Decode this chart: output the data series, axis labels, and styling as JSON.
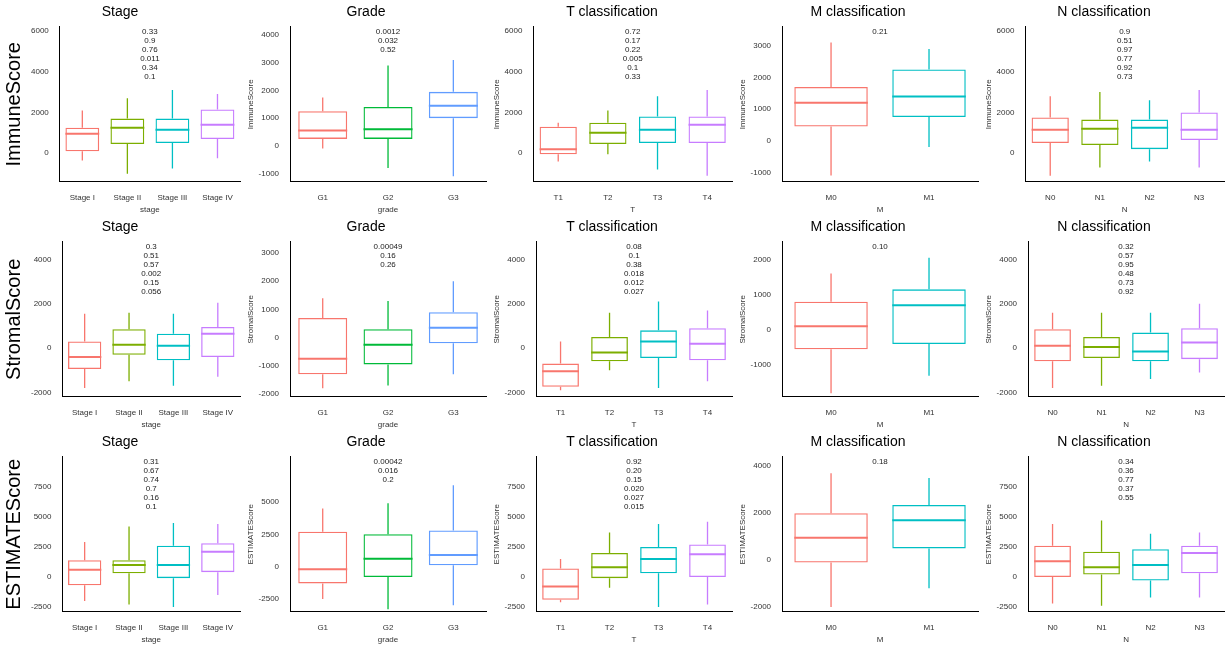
{
  "chart_data": [
    {
      "type": "box",
      "title": "Stage",
      "xlabel": "stage",
      "ylabel": "ImmuneScore",
      "categories": [
        "Stage I",
        "Stage II",
        "Stage III",
        "Stage IV"
      ],
      "colors": [
        "#f8766d",
        "#7cae00",
        "#00bfc4",
        "#c77cff"
      ],
      "boxes": [
        {
          "low": -350,
          "q1": 100,
          "median": 950,
          "q3": 1250,
          "high": 2100
        },
        {
          "low": -1000,
          "q1": 450,
          "median": 1250,
          "q3": 1700,
          "high": 2700
        },
        {
          "low": -750,
          "q1": 500,
          "median": 1150,
          "q3": 1700,
          "high": 3100
        },
        {
          "low": -250,
          "q1": 700,
          "median": 1400,
          "q3": 2150,
          "high": 2900
        }
      ],
      "ylim": [
        -1400,
        6200
      ],
      "yticks": [
        0,
        2000,
        4000,
        6000
      ],
      "annotations": [
        "0.33",
        "0.9",
        "0.76",
        "0.011",
        "0.34",
        "0.1"
      ]
    },
    {
      "type": "box",
      "title": "Grade",
      "xlabel": "grade",
      "ylabel": "ImmuneScore",
      "categories": [
        "G1",
        "G2",
        "G3"
      ],
      "colors": [
        "#f8766d",
        "#00ba38",
        "#619cff"
      ],
      "boxes": [
        {
          "low": -100,
          "q1": 250,
          "median": 550,
          "q3": 1250,
          "high": 1750
        },
        {
          "low": -800,
          "q1": 250,
          "median": 600,
          "q3": 1400,
          "high": 2900
        },
        {
          "low": -1100,
          "q1": 1000,
          "median": 1450,
          "q3": 1950,
          "high": 3100
        }
      ],
      "ylim": [
        -1300,
        4300
      ],
      "yticks": [
        -1000,
        0,
        1000,
        2000,
        3000,
        4000
      ],
      "annotations": [
        "0.0012",
        "0.032",
        "0.52"
      ]
    },
    {
      "type": "box",
      "title": "T classification",
      "xlabel": "T",
      "ylabel": "ImmuneScore",
      "categories": [
        "T1",
        "T2",
        "T3",
        "T4"
      ],
      "colors": [
        "#f8766d",
        "#7cae00",
        "#00bfc4",
        "#c77cff"
      ],
      "boxes": [
        {
          "low": -400,
          "q1": -50,
          "median": 200,
          "q3": 1300,
          "high": 1500
        },
        {
          "low": -50,
          "q1": 450,
          "median": 1000,
          "q3": 1500,
          "high": 2100
        },
        {
          "low": -800,
          "q1": 500,
          "median": 1150,
          "q3": 1800,
          "high": 2800
        },
        {
          "low": -1100,
          "q1": 500,
          "median": 1400,
          "q3": 1800,
          "high": 3100
        }
      ],
      "ylim": [
        -1400,
        6200
      ],
      "yticks": [
        0,
        2000,
        4000,
        6000
      ],
      "annotations": [
        "0.72",
        "0.17",
        "0.22",
        "0.005",
        "0.1",
        "0.33"
      ]
    },
    {
      "type": "box",
      "title": "M classification",
      "xlabel": "M",
      "ylabel": "ImmuneScore",
      "categories": [
        "M0",
        "M1"
      ],
      "colors": [
        "#f8766d",
        "#00bfc4"
      ],
      "boxes": [
        {
          "low": -1100,
          "q1": 450,
          "median": 1200,
          "q3": 1700,
          "high": 3100
        },
        {
          "low": -200,
          "q1": 750,
          "median": 1400,
          "q3": 2250,
          "high": 2900
        }
      ],
      "ylim": [
        -1300,
        3600
      ],
      "yticks": [
        -1000,
        0,
        1000,
        2000,
        3000
      ],
      "annotations": [
        "0.21"
      ]
    },
    {
      "type": "box",
      "title": "N classification",
      "xlabel": "N",
      "ylabel": "ImmuneScore",
      "categories": [
        "N0",
        "N1",
        "N2",
        "N3"
      ],
      "colors": [
        "#f8766d",
        "#7cae00",
        "#00bfc4",
        "#c77cff"
      ],
      "boxes": [
        {
          "low": -1100,
          "q1": 500,
          "median": 1150,
          "q3": 1750,
          "high": 2800
        },
        {
          "low": -700,
          "q1": 400,
          "median": 1200,
          "q3": 1650,
          "high": 3000
        },
        {
          "low": -400,
          "q1": 200,
          "median": 1250,
          "q3": 1650,
          "high": 2600
        },
        {
          "low": -700,
          "q1": 650,
          "median": 1150,
          "q3": 2000,
          "high": 3100
        }
      ],
      "ylim": [
        -1400,
        6200
      ],
      "yticks": [
        0,
        2000,
        4000,
        6000
      ],
      "annotations": [
        "0.9",
        "0.51",
        "0.97",
        "0.77",
        "0.92",
        "0.73"
      ]
    },
    {
      "type": "box",
      "title": "Stage",
      "xlabel": "stage",
      "ylabel": "StromalScore",
      "categories": [
        "Stage I",
        "Stage II",
        "Stage III",
        "Stage IV"
      ],
      "colors": [
        "#f8766d",
        "#7cae00",
        "#00bfc4",
        "#c77cff"
      ],
      "boxes": [
        {
          "low": -1800,
          "q1": -950,
          "median": -400,
          "q3": 300,
          "high": 1550
        },
        {
          "low": -1500,
          "q1": -300,
          "median": 150,
          "q3": 850,
          "high": 1600
        },
        {
          "low": -1700,
          "q1": -550,
          "median": 100,
          "q3": 650,
          "high": 1550
        },
        {
          "low": -1300,
          "q1": -400,
          "median": 650,
          "q3": 950,
          "high": 2050
        }
      ],
      "ylim": [
        -2200,
        4800
      ],
      "yticks": [
        -2000,
        0,
        2000,
        4000
      ],
      "annotations": [
        "0.3",
        "0.51",
        "0.57",
        "0.002",
        "0.15",
        "0.056"
      ]
    },
    {
      "type": "box",
      "title": "Grade",
      "xlabel": "grade",
      "ylabel": "StromalScore",
      "categories": [
        "G1",
        "G2",
        "G3"
      ],
      "colors": [
        "#f8766d",
        "#00ba38",
        "#619cff"
      ],
      "boxes": [
        {
          "low": -1800,
          "q1": -1300,
          "median": -750,
          "q3": 700,
          "high": 1400
        },
        {
          "low": -1700,
          "q1": -950,
          "median": -250,
          "q3": 300,
          "high": 1300
        },
        {
          "low": -1300,
          "q1": -200,
          "median": 350,
          "q3": 900,
          "high": 2000
        }
      ],
      "ylim": [
        -2100,
        3400
      ],
      "yticks": [
        -2000,
        -1000,
        0,
        1000,
        2000,
        3000
      ],
      "annotations": [
        "0.00049",
        "0.16",
        "0.26"
      ]
    },
    {
      "type": "box",
      "title": "T classification",
      "xlabel": "T",
      "ylabel": "StromalScore",
      "categories": [
        "T1",
        "T2",
        "T3",
        "T4"
      ],
      "colors": [
        "#f8766d",
        "#7cae00",
        "#00bfc4",
        "#c77cff"
      ],
      "boxes": [
        {
          "low": -1900,
          "q1": -1750,
          "median": -1050,
          "q3": -700,
          "high": 300
        },
        {
          "low": -1000,
          "q1": -600,
          "median": -200,
          "q3": 500,
          "high": 1600
        },
        {
          "low": -1800,
          "q1": -450,
          "median": 300,
          "q3": 800,
          "high": 2100
        },
        {
          "low": -1500,
          "q1": -550,
          "median": 200,
          "q3": 900,
          "high": 1700
        }
      ],
      "ylim": [
        -2200,
        4800
      ],
      "yticks": [
        -2000,
        0,
        2000,
        4000
      ],
      "annotations": [
        "0.08",
        "0.1",
        "0.38",
        "0.018",
        "0.012",
        "0.027"
      ]
    },
    {
      "type": "box",
      "title": "M classification",
      "xlabel": "M",
      "ylabel": "StromalScore",
      "categories": [
        "M0",
        "M1"
      ],
      "colors": [
        "#f8766d",
        "#00bfc4"
      ],
      "boxes": [
        {
          "low": -1800,
          "q1": -550,
          "median": 100,
          "q3": 800,
          "high": 1600
        },
        {
          "low": -1300,
          "q1": -400,
          "median": 700,
          "q3": 1150,
          "high": 2050
        }
      ],
      "ylim": [
        -1900,
        2500
      ],
      "yticks": [
        -1000,
        0,
        1000,
        2000
      ],
      "annotations": [
        "0.10"
      ]
    },
    {
      "type": "box",
      "title": "N classification",
      "xlabel": "N",
      "ylabel": "StromalScore",
      "categories": [
        "N0",
        "N1",
        "N2",
        "N3"
      ],
      "colors": [
        "#f8766d",
        "#7cae00",
        "#00bfc4",
        "#c77cff"
      ],
      "boxes": [
        {
          "low": -1800,
          "q1": -600,
          "median": 100,
          "q3": 850,
          "high": 1600
        },
        {
          "low": -1700,
          "q1": -450,
          "median": 50,
          "q3": 500,
          "high": 1600
        },
        {
          "low": -1400,
          "q1": -600,
          "median": -150,
          "q3": 700,
          "high": 1600
        },
        {
          "low": -1100,
          "q1": -500,
          "median": 250,
          "q3": 900,
          "high": 2000
        }
      ],
      "ylim": [
        -2200,
        4800
      ],
      "yticks": [
        -2000,
        0,
        2000,
        4000
      ],
      "annotations": [
        "0.32",
        "0.57",
        "0.95",
        "0.48",
        "0.73",
        "0.92"
      ]
    },
    {
      "type": "box",
      "title": "Stage",
      "xlabel": "stage",
      "ylabel": "ESTIMATEScore",
      "categories": [
        "Stage I",
        "Stage II",
        "Stage III",
        "Stage IV"
      ],
      "colors": [
        "#f8766d",
        "#7cae00",
        "#00bfc4",
        "#c77cff"
      ],
      "boxes": [
        {
          "low": -2000,
          "q1": -700,
          "median": 600,
          "q3": 1400,
          "high": 2900
        },
        {
          "low": -2300,
          "q1": 300,
          "median": 1000,
          "q3": 1400,
          "high": 4200
        },
        {
          "low": -2500,
          "q1": -100,
          "median": 1000,
          "q3": 2600,
          "high": 4500
        },
        {
          "low": -1500,
          "q1": 400,
          "median": 2100,
          "q3": 2800,
          "high": 4400
        }
      ],
      "ylim": [
        -2900,
        10000
      ],
      "yticks": [
        -2500,
        0,
        2500,
        5000,
        7500
      ],
      "annotations": [
        "0.31",
        "0.67",
        "0.74",
        "0.7",
        "0.16",
        "0.1"
      ]
    },
    {
      "type": "box",
      "title": "Grade",
      "xlabel": "grade",
      "ylabel": "ESTIMATEScore",
      "categories": [
        "G1",
        "G2",
        "G3"
      ],
      "colors": [
        "#f8766d",
        "#00ba38",
        "#619cff"
      ],
      "boxes": [
        {
          "low": -2500,
          "q1": -1300,
          "median": -200,
          "q3": 2700,
          "high": 4500
        },
        {
          "low": -3300,
          "q1": -800,
          "median": 600,
          "q3": 2500,
          "high": 4900
        },
        {
          "low": -3000,
          "q1": 100,
          "median": 900,
          "q3": 2800,
          "high": 6300
        }
      ],
      "ylim": [
        -3500,
        8500
      ],
      "yticks": [
        -2500,
        0,
        2500,
        5000
      ],
      "annotations": [
        "0.00042",
        "0.016",
        "0.2"
      ]
    },
    {
      "type": "box",
      "title": "T classification",
      "xlabel": "T",
      "ylabel": "ESTIMATEScore",
      "categories": [
        "T1",
        "T2",
        "T3",
        "T4"
      ],
      "colors": [
        "#f8766d",
        "#7cae00",
        "#00bfc4",
        "#c77cff"
      ],
      "boxes": [
        {
          "low": -2100,
          "q1": -1900,
          "median": -800,
          "q3": 700,
          "high": 1500
        },
        {
          "low": -900,
          "q1": -100,
          "median": 800,
          "q3": 2000,
          "high": 3700
        },
        {
          "low": -2500,
          "q1": 300,
          "median": 1500,
          "q3": 2500,
          "high": 4400
        },
        {
          "low": -2300,
          "q1": 0,
          "median": 1900,
          "q3": 2700,
          "high": 4600
        }
      ],
      "ylim": [
        -2900,
        10000
      ],
      "yticks": [
        -2500,
        0,
        2500,
        5000,
        7500
      ],
      "annotations": [
        "0.92",
        "0.20",
        "0.15",
        "0.020",
        "0.027",
        "0.015"
      ]
    },
    {
      "type": "box",
      "title": "M classification",
      "xlabel": "M",
      "ylabel": "ESTIMATEScore",
      "categories": [
        "M0",
        "M1"
      ],
      "colors": [
        "#f8766d",
        "#00bfc4"
      ],
      "boxes": [
        {
          "low": -2000,
          "q1": -100,
          "median": 950,
          "q3": 2000,
          "high": 3700
        },
        {
          "low": -1200,
          "q1": 500,
          "median": 1700,
          "q3": 2350,
          "high": 3500
        }
      ],
      "ylim": [
        -2200,
        4400
      ],
      "yticks": [
        -2000,
        0,
        2000,
        4000
      ],
      "annotations": [
        "0.18"
      ]
    },
    {
      "type": "box",
      "title": "N classification",
      "xlabel": "N",
      "ylabel": "ESTIMATEScore",
      "categories": [
        "N0",
        "N1",
        "N2",
        "N3"
      ],
      "colors": [
        "#f8766d",
        "#7cae00",
        "#00bfc4",
        "#c77cff"
      ],
      "boxes": [
        {
          "low": -2200,
          "q1": 0,
          "median": 1300,
          "q3": 2600,
          "high": 4400
        },
        {
          "low": -2400,
          "q1": 200,
          "median": 800,
          "q3": 2100,
          "high": 4700
        },
        {
          "low": -1700,
          "q1": -300,
          "median": 1000,
          "q3": 2300,
          "high": 3600
        },
        {
          "low": -1700,
          "q1": 300,
          "median": 2000,
          "q3": 2600,
          "high": 3700
        }
      ],
      "ylim": [
        -2900,
        10000
      ],
      "yticks": [
        -2500,
        0,
        2500,
        5000,
        7500
      ],
      "annotations": [
        "0.34",
        "0.36",
        "0.77",
        "0.37",
        "0.55"
      ]
    }
  ]
}
